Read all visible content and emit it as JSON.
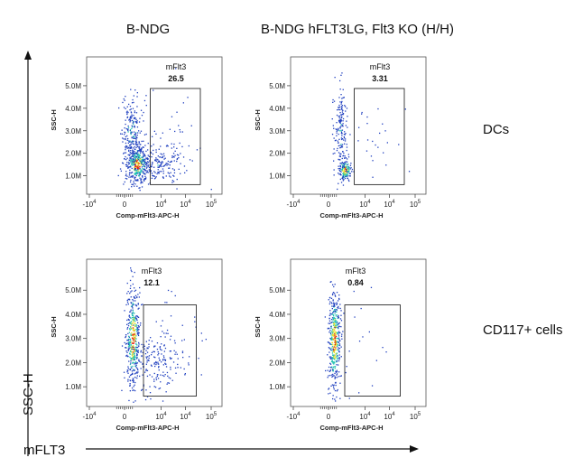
{
  "column_titles": [
    "B-NDG",
    "B-NDG hFLT3LG, Flt3 KO (H/H)"
  ],
  "row_titles": [
    "DCs",
    "CD117+ cells"
  ],
  "global_axes": {
    "y_label": "SSC-H",
    "x_label": "mFLT3"
  },
  "colors": {
    "low": "#1f3fbf",
    "mid": "#20c0b0",
    "high": "#e8e030",
    "peak": "#e02010",
    "gate": "#111111"
  },
  "chart_data": [
    {
      "type": "scatter",
      "row": "DCs",
      "column": "B-NDG",
      "xlabel": "Comp-mFlt3-APC-H",
      "ylabel": "SSC-H",
      "x_ticks": [
        "-10",
        "0",
        "10",
        "10",
        "10"
      ],
      "x_tick_exponents": [
        "4",
        "",
        "4",
        "4",
        "5"
      ],
      "y_ticks": [
        "1.0M",
        "2.0M",
        "3.0M",
        "4.0M",
        "5.0M"
      ],
      "gate": {
        "name": "mFlt3",
        "percent": "26.5"
      }
    },
    {
      "type": "scatter",
      "row": "DCs",
      "column": "B-NDG hFLT3LG, Flt3 KO (H/H)",
      "xlabel": "Comp-mFlt3-APC-H",
      "ylabel": "SSC-H",
      "x_ticks": [
        "-10",
        "0",
        "10",
        "10",
        "10"
      ],
      "x_tick_exponents": [
        "4",
        "",
        "4",
        "4",
        "5"
      ],
      "y_ticks": [
        "1.0M",
        "2.0M",
        "3.0M",
        "4.0M",
        "5.0M"
      ],
      "gate": {
        "name": "mFlt3",
        "percent": "3.31"
      }
    },
    {
      "type": "scatter",
      "row": "CD117+ cells",
      "column": "B-NDG",
      "xlabel": "Comp-mFlt3-APC-H",
      "ylabel": "SSC-H",
      "x_ticks": [
        "-10",
        "0",
        "10",
        "10",
        "10"
      ],
      "x_tick_exponents": [
        "4",
        "",
        "4",
        "4",
        "5"
      ],
      "y_ticks": [
        "1.0M",
        "2.0M",
        "3.0M",
        "4.0M",
        "5.0M"
      ],
      "gate": {
        "name": "mFlt3",
        "percent": "12.1"
      }
    },
    {
      "type": "scatter",
      "row": "CD117+ cells",
      "column": "B-NDG hFLT3LG, Flt3 KO (H/H)",
      "xlabel": "Comp-mFlt3-APC-H",
      "ylabel": "SSC-H",
      "x_ticks": [
        "-10",
        "0",
        "10",
        "10",
        "10"
      ],
      "x_tick_exponents": [
        "4",
        "",
        "4",
        "4",
        "5"
      ],
      "y_ticks": [
        "1.0M",
        "2.0M",
        "3.0M",
        "4.0M",
        "5.0M"
      ],
      "gate": {
        "name": "mFlt3",
        "percent": "0.84"
      }
    }
  ]
}
